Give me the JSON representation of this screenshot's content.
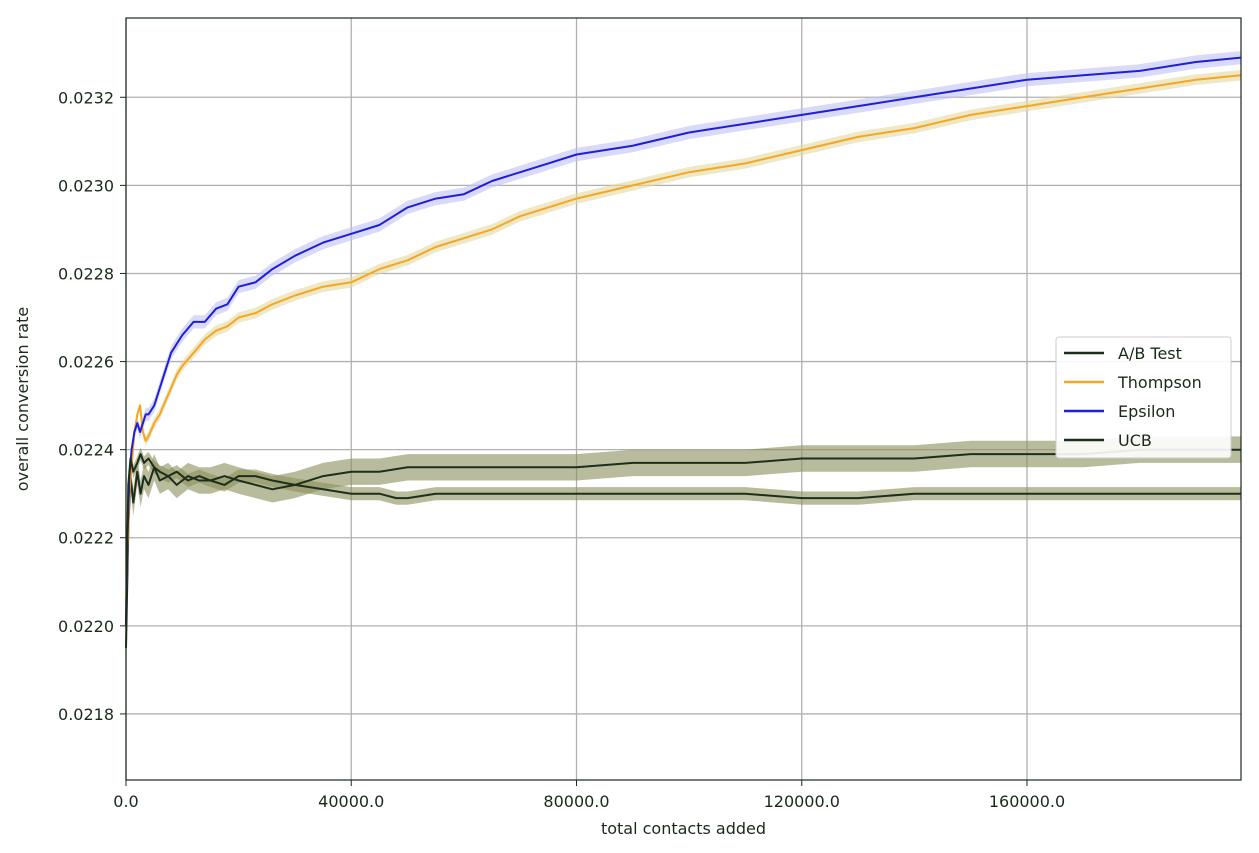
{
  "chart_data": {
    "type": "line",
    "title": "",
    "xlabel": "total contacts added",
    "ylabel": "overall conversion rate",
    "xlim": [
      0,
      198000
    ],
    "ylim": [
      0.02165,
      0.02338
    ],
    "grid": true,
    "legend_position": "center-right",
    "x_ticks": [
      0,
      40000,
      80000,
      120000,
      160000
    ],
    "x_tick_labels": [
      "0.0",
      "40000.0",
      "80000.0",
      "120000.0",
      "160000.0"
    ],
    "y_ticks": [
      0.0218,
      0.022,
      0.0222,
      0.0224,
      0.0226,
      0.0228,
      0.023,
      0.0232
    ],
    "y_tick_labels": [
      "0.0218",
      "0.0220",
      "0.0222",
      "0.0224",
      "0.0226",
      "0.0228",
      "0.0230",
      "0.0232"
    ],
    "series": [
      {
        "name": "A/B Test",
        "color": "#1c2e1c",
        "band_color": "#8a8f5a",
        "x": [
          0,
          400,
          800,
          1300,
          2000,
          2600,
          3200,
          4000,
          5000,
          6000,
          7500,
          9000,
          11000,
          13000,
          15000,
          17500,
          20000,
          23000,
          26000,
          30000,
          35000,
          40000,
          45000,
          50000,
          55000,
          60000,
          70000,
          80000,
          90000,
          100000,
          110000,
          120000,
          130000,
          140000,
          150000,
          160000,
          170000,
          180000,
          190000,
          198000
        ],
        "y": [
          0.02195,
          0.02222,
          0.02234,
          0.02228,
          0.02235,
          0.0223,
          0.02234,
          0.02232,
          0.02236,
          0.02233,
          0.02234,
          0.02232,
          0.02234,
          0.02233,
          0.02233,
          0.02234,
          0.02233,
          0.02232,
          0.02231,
          0.02232,
          0.02234,
          0.02235,
          0.02235,
          0.02236,
          0.02236,
          0.02236,
          0.02236,
          0.02236,
          0.02237,
          0.02237,
          0.02237,
          0.02238,
          0.02238,
          0.02238,
          0.02239,
          0.02239,
          0.02239,
          0.0224,
          0.0224,
          0.0224
        ],
        "band": 3e-05
      },
      {
        "name": "Thompson",
        "color": "#f5a623",
        "band_color": "#e3d9a0",
        "x": [
          0,
          300,
          600,
          1000,
          1500,
          2000,
          2500,
          3000,
          3500,
          4000,
          5000,
          6000,
          7000,
          8000,
          9000,
          10000,
          12000,
          14000,
          16000,
          18000,
          20000,
          23000,
          26000,
          30000,
          35000,
          40000,
          45000,
          50000,
          55000,
          60000,
          65000,
          70000,
          75000,
          80000,
          90000,
          100000,
          110000,
          120000,
          130000,
          140000,
          150000,
          160000,
          170000,
          180000,
          190000,
          198000
        ],
        "y": [
          0.02205,
          0.02218,
          0.0223,
          0.02236,
          0.02244,
          0.02248,
          0.0225,
          0.02244,
          0.02242,
          0.02243,
          0.02246,
          0.02248,
          0.02251,
          0.02254,
          0.02257,
          0.02259,
          0.02262,
          0.02265,
          0.02267,
          0.02268,
          0.0227,
          0.02271,
          0.02273,
          0.02275,
          0.02277,
          0.02278,
          0.02281,
          0.02283,
          0.02286,
          0.02288,
          0.0229,
          0.02293,
          0.02295,
          0.02297,
          0.023,
          0.02303,
          0.02305,
          0.02308,
          0.02311,
          0.02313,
          0.02316,
          0.02318,
          0.0232,
          0.02322,
          0.02324,
          0.02325
        ],
        "band": 1.2e-05
      },
      {
        "name": "Epsilon",
        "color": "#1f1fd6",
        "band_color": "#c0c0f5",
        "x": [
          0,
          300,
          600,
          1000,
          1500,
          2000,
          2500,
          3000,
          3500,
          4000,
          5000,
          6000,
          7000,
          8000,
          9000,
          10000,
          12000,
          14000,
          16000,
          18000,
          20000,
          23000,
          26000,
          30000,
          35000,
          40000,
          45000,
          50000,
          55000,
          60000,
          65000,
          70000,
          75000,
          80000,
          90000,
          100000,
          110000,
          120000,
          130000,
          140000,
          150000,
          160000,
          170000,
          180000,
          190000,
          198000
        ],
        "y": [
          0.022,
          0.02222,
          0.02234,
          0.0224,
          0.02244,
          0.02246,
          0.02244,
          0.02246,
          0.02248,
          0.02248,
          0.0225,
          0.02254,
          0.02258,
          0.02262,
          0.02264,
          0.02266,
          0.02269,
          0.02269,
          0.02272,
          0.02273,
          0.02277,
          0.02278,
          0.02281,
          0.02284,
          0.02287,
          0.02289,
          0.02291,
          0.02295,
          0.02297,
          0.02298,
          0.02301,
          0.02303,
          0.02305,
          0.02307,
          0.02309,
          0.02312,
          0.02314,
          0.02316,
          0.02318,
          0.0232,
          0.02322,
          0.02324,
          0.02325,
          0.02326,
          0.02328,
          0.02329
        ],
        "band": 1.5e-05
      },
      {
        "name": "UCB",
        "color": "#1c2e1c",
        "band_color": "#8a8f5a",
        "x": [
          0,
          400,
          800,
          1300,
          2000,
          2600,
          3200,
          4000,
          5000,
          6000,
          7500,
          9000,
          11000,
          13000,
          15000,
          17500,
          20000,
          23000,
          26000,
          30000,
          35000,
          40000,
          45000,
          48000,
          50000,
          55000,
          60000,
          70000,
          80000,
          90000,
          100000,
          110000,
          120000,
          130000,
          140000,
          150000,
          160000,
          170000,
          180000,
          190000,
          198000
        ],
        "y": [
          0.022,
          0.02232,
          0.02238,
          0.02235,
          0.02237,
          0.02239,
          0.02237,
          0.02238,
          0.02236,
          0.02235,
          0.02234,
          0.02235,
          0.02233,
          0.02234,
          0.02233,
          0.02232,
          0.02234,
          0.02234,
          0.02233,
          0.02232,
          0.02231,
          0.0223,
          0.0223,
          0.02229,
          0.02229,
          0.0223,
          0.0223,
          0.0223,
          0.0223,
          0.0223,
          0.0223,
          0.0223,
          0.02229,
          0.02229,
          0.0223,
          0.0223,
          0.0223,
          0.0223,
          0.0223,
          0.0223,
          0.0223
        ],
        "band": 1.5e-05
      }
    ]
  }
}
